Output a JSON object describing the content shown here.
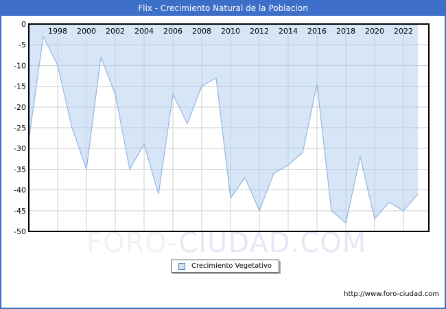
{
  "title": "Flix - Crecimiento Natural de la Poblacion",
  "legend": {
    "label": "Crecimiento Vegetativo"
  },
  "footer": {
    "url": "http://www.foro-ciudad.com"
  },
  "watermark": {
    "part1": "FORO-",
    "part2": "CIUDAD.COM"
  },
  "colors": {
    "frame_blue": "#3a6fc9",
    "title_bg": "#3e6fc8",
    "title_text": "#ffffff",
    "area_line": "#94b5e0",
    "area_fill": "#aecdee",
    "grid": "#cccccc",
    "plot_border": "#000000",
    "axis_text": "#000000",
    "legend_swatch_fill": "#cfe2f3",
    "legend_swatch_border": "#4f81bd",
    "watermark_gray": "#f2f2f2",
    "watermark_lavender": "#e7e7f6"
  },
  "chart_data": {
    "type": "area",
    "title": "Flix - Crecimiento Natural de la Poblacion",
    "series_name": "Crecimiento Vegetativo",
    "x": [
      1996,
      1997,
      1998,
      1999,
      2000,
      2001,
      2002,
      2003,
      2004,
      2005,
      2006,
      2007,
      2008,
      2009,
      2010,
      2011,
      2012,
      2013,
      2014,
      2015,
      2016,
      2017,
      2018,
      2019,
      2020,
      2021,
      2022,
      2023
    ],
    "values": [
      -28,
      -3,
      -10,
      -25,
      -35,
      -8,
      -17,
      -35,
      -29,
      -41,
      -17,
      -24,
      -15,
      -13,
      -42,
      -37,
      -45,
      -36,
      -34,
      -31,
      -14.5,
      -45,
      -48,
      -32,
      -47,
      -43,
      -45,
      -41
    ],
    "ylim": [
      -50,
      0
    ],
    "ytick_step": 5,
    "ytick_labels": [
      "0",
      "-5",
      "-10",
      "-15",
      "-20",
      "-25",
      "-30",
      "-35",
      "-40",
      "-45",
      "-50"
    ],
    "xtick_labels": [
      "1998",
      "2000",
      "2002",
      "2004",
      "2006",
      "2008",
      "2010",
      "2012",
      "2014",
      "2016",
      "2018",
      "2020",
      "2022"
    ],
    "grid": true,
    "baseline": 0,
    "legend_position": "bottom-center",
    "fill_direction": "from-zero-baseline-down-to-line"
  }
}
